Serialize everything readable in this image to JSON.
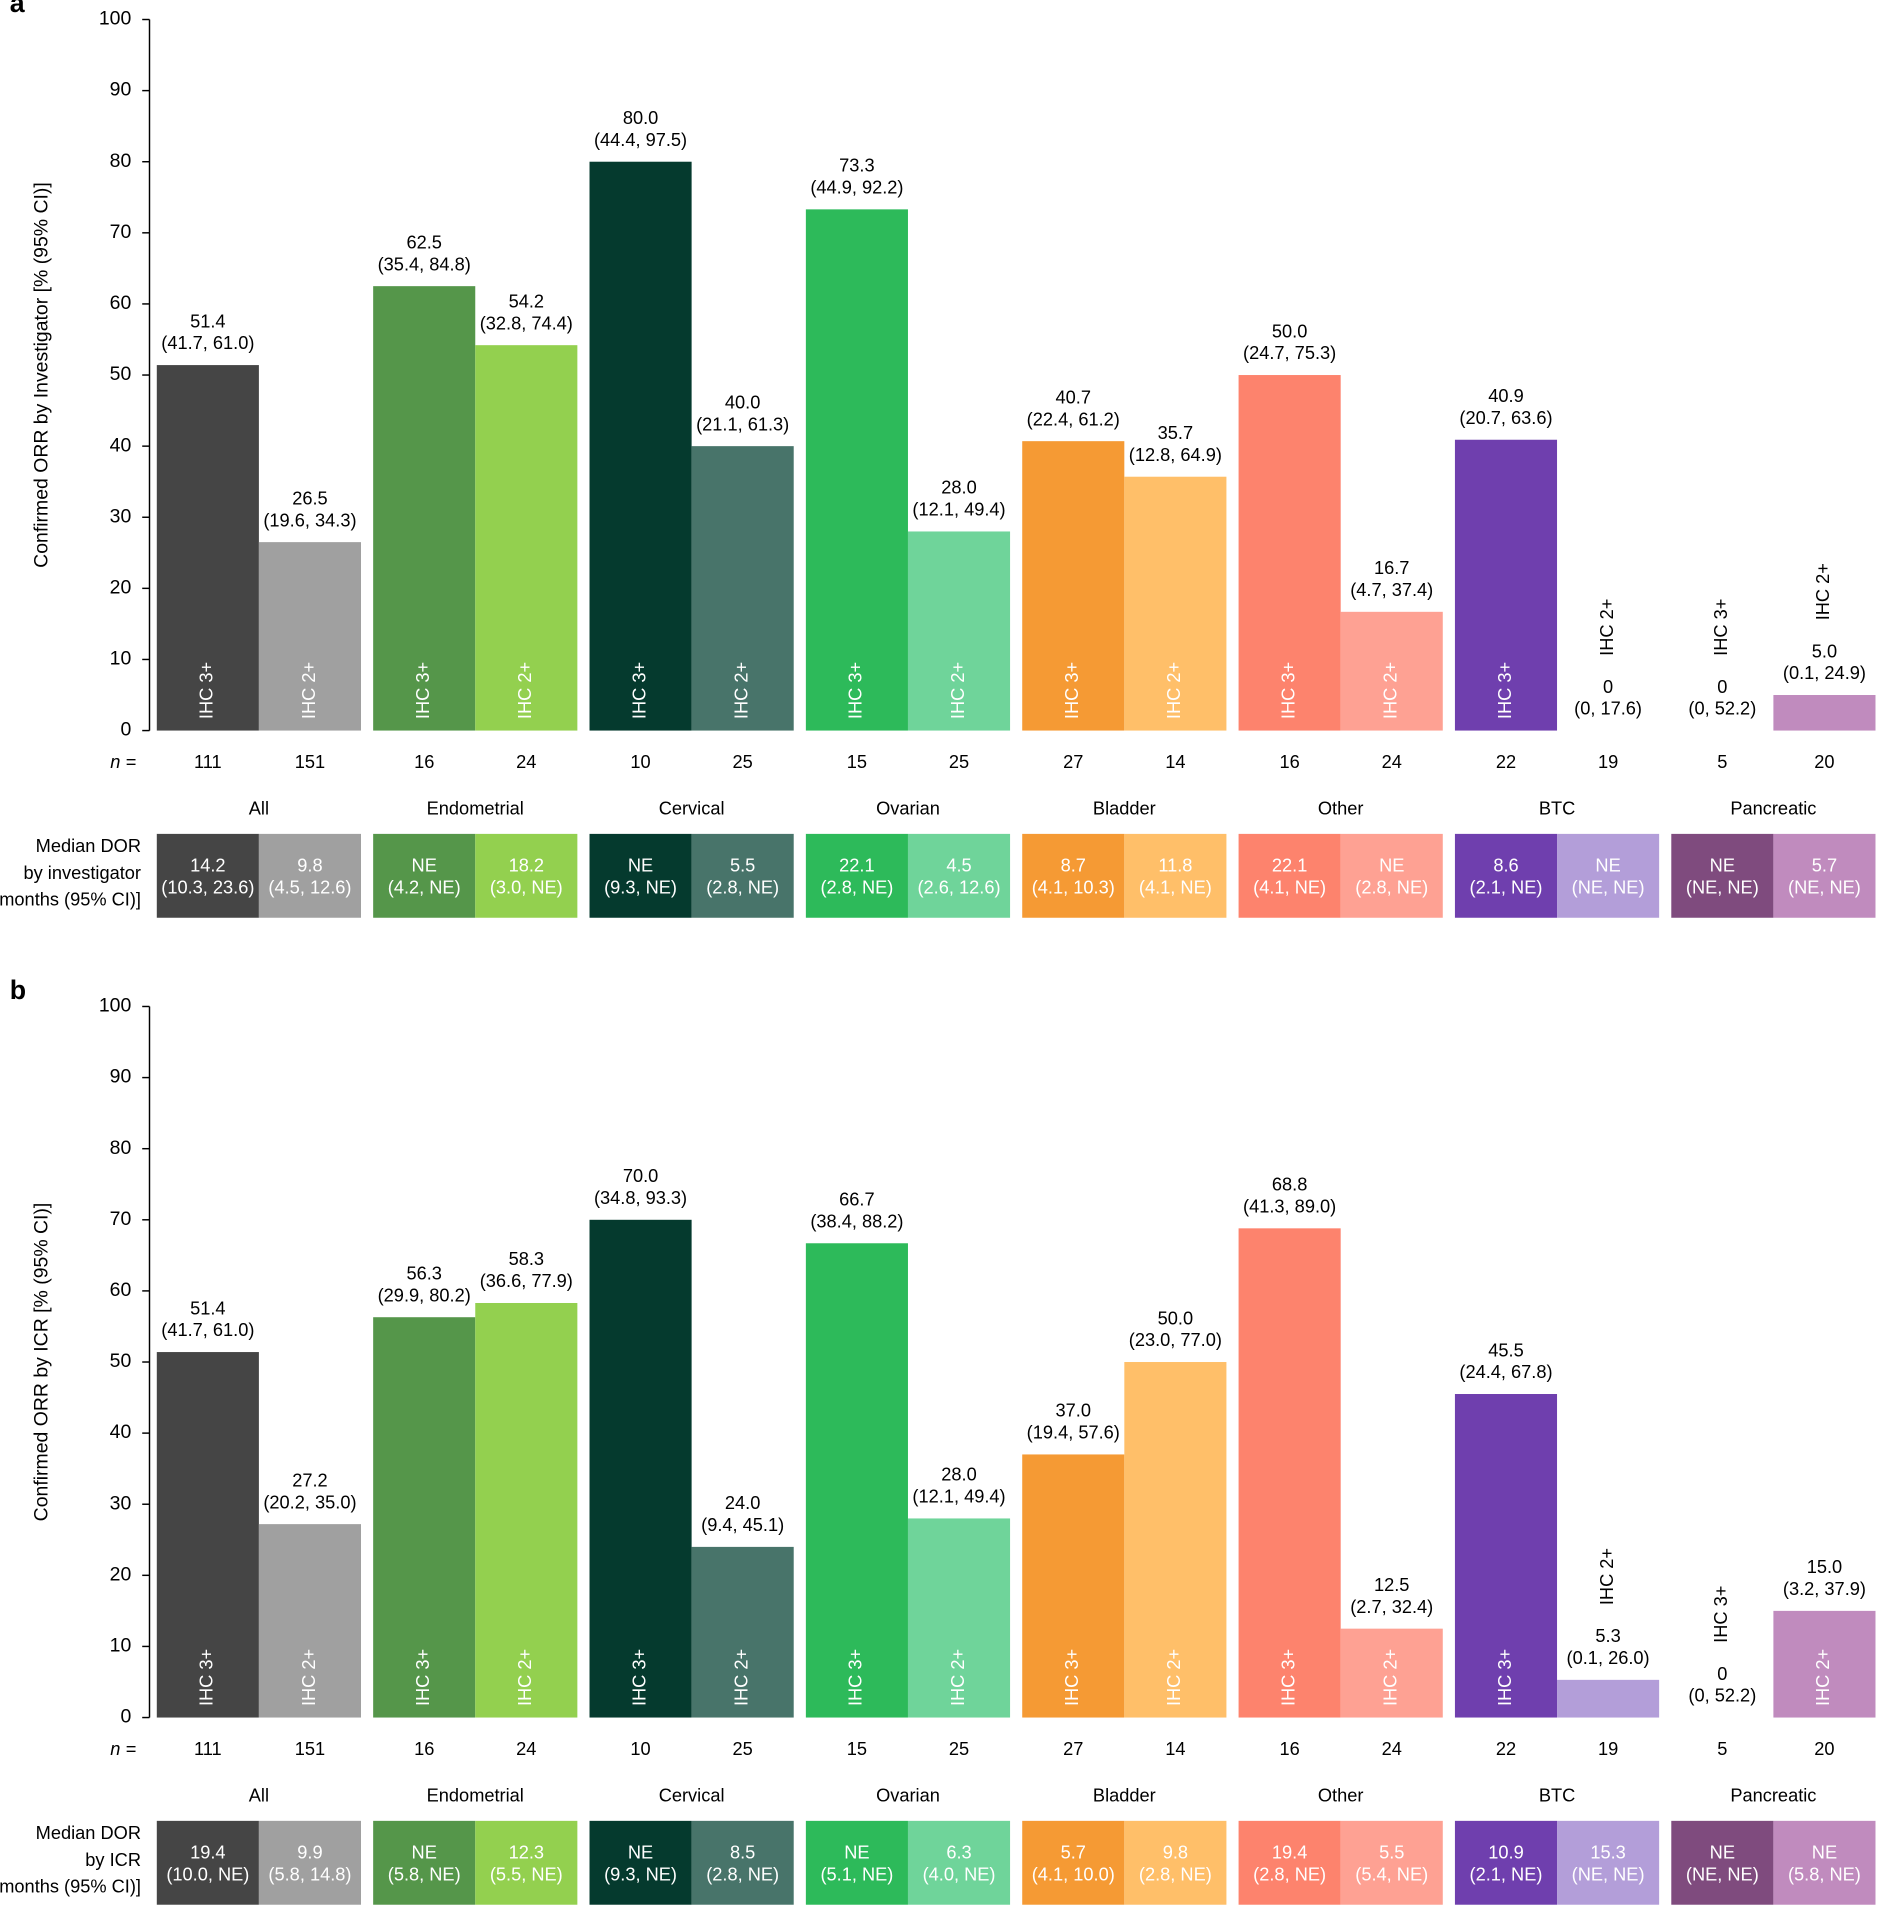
{
  "chart_data": [
    {
      "type": "bar",
      "panel": "a",
      "y_label": "Confirmed ORR by Investigator [% (95% CI)]",
      "ylim": [
        0,
        100
      ],
      "yticks": [
        0,
        10,
        20,
        30,
        40,
        50,
        60,
        70,
        80,
        90,
        100
      ],
      "groups": [
        "All",
        "Endometrial",
        "Cervical",
        "Ovarian",
        "Bladder",
        "Other",
        "BTC",
        "Pancreatic"
      ],
      "categories": [
        "IHC 3+",
        "IHC 2+",
        "IHC 3+",
        "IHC 2+",
        "IHC 3+",
        "IHC 2+",
        "IHC 3+",
        "IHC 2+",
        "IHC 3+",
        "IHC 2+",
        "IHC 3+",
        "IHC 2+",
        "IHC 3+",
        "IHC 2+",
        "IHC 3+",
        "IHC 2+"
      ],
      "values": [
        51.4,
        26.5,
        62.5,
        54.2,
        80.0,
        40.0,
        73.3,
        28.0,
        40.7,
        35.7,
        50.0,
        16.7,
        40.9,
        0,
        0,
        5.0
      ],
      "value_labels": [
        "51.4",
        "26.5",
        "62.5",
        "54.2",
        "80.0",
        "40.0",
        "73.3",
        "28.0",
        "40.7",
        "35.7",
        "50.0",
        "16.7",
        "40.9",
        "0",
        "0",
        "5.0"
      ],
      "ci_labels": [
        "(41.7, 61.0)",
        "(19.6, 34.3)",
        "(35.4, 84.8)",
        "(32.8, 74.4)",
        "(44.4, 97.5)",
        "(21.1, 61.3)",
        "(44.9, 92.2)",
        "(12.1, 49.4)",
        "(22.4, 61.2)",
        "(12.8, 64.9)",
        "(24.7, 75.3)",
        "(4.7, 37.4)",
        "(20.7, 63.6)",
        "(0, 17.6)",
        "(0, 52.2)",
        "(0.1, 24.9)"
      ],
      "n_label": "n =",
      "n": [
        111,
        151,
        16,
        24,
        10,
        25,
        15,
        25,
        27,
        14,
        16,
        24,
        22,
        19,
        5,
        20
      ],
      "dor_label": [
        "Median DOR",
        "by investigator",
        "[months (95% CI)]"
      ],
      "dor": [
        "14.2",
        "9.8",
        "NE",
        "18.2",
        "NE",
        "5.5",
        "22.1",
        "4.5",
        "8.7",
        "11.8",
        "22.1",
        "NE",
        "8.6",
        "NE",
        "NE",
        "5.7"
      ],
      "dor_ci": [
        "(10.3, 23.6)",
        "(4.5, 12.6)",
        "(4.2, NE)",
        "(3.0, NE)",
        "(9.3, NE)",
        "(2.8, NE)",
        "(2.8, NE)",
        "(2.6, 12.6)",
        "(4.1, 10.3)",
        "(4.1, NE)",
        "(4.1, NE)",
        "(2.8, NE)",
        "(2.1, NE)",
        "(NE, NE)",
        "(NE, NE)",
        "(NE, NE)"
      ],
      "colors": [
        "#454545",
        "#a0a0a0",
        "#55964a",
        "#93d04f",
        "#053a2e",
        "#48746a",
        "#2dba5a",
        "#6fd49a",
        "#f59a34",
        "#ffbf69",
        "#fd836d",
        "#fea193",
        "#6f3fae",
        "#b39ed9",
        "#7f4b7e",
        "#c08bbe"
      ]
    },
    {
      "type": "bar",
      "panel": "b",
      "y_label": "Confirmed ORR by ICR [% (95% CI)]",
      "ylim": [
        0,
        100
      ],
      "yticks": [
        0,
        10,
        20,
        30,
        40,
        50,
        60,
        70,
        80,
        90,
        100
      ],
      "groups": [
        "All",
        "Endometrial",
        "Cervical",
        "Ovarian",
        "Bladder",
        "Other",
        "BTC",
        "Pancreatic"
      ],
      "categories": [
        "IHC 3+",
        "IHC 2+",
        "IHC 3+",
        "IHC 2+",
        "IHC 3+",
        "IHC 2+",
        "IHC 3+",
        "IHC 2+",
        "IHC 3+",
        "IHC 2+",
        "IHC 3+",
        "IHC 2+",
        "IHC 3+",
        "IHC 2+",
        "IHC 3+",
        "IHC 2+"
      ],
      "values": [
        51.4,
        27.2,
        56.3,
        58.3,
        70.0,
        24.0,
        66.7,
        28.0,
        37.0,
        50.0,
        68.8,
        12.5,
        45.5,
        5.3,
        0,
        15.0
      ],
      "value_labels": [
        "51.4",
        "27.2",
        "56.3",
        "58.3",
        "70.0",
        "24.0",
        "66.7",
        "28.0",
        "37.0",
        "50.0",
        "68.8",
        "12.5",
        "45.5",
        "5.3",
        "0",
        "15.0"
      ],
      "ci_labels": [
        "(41.7, 61.0)",
        "(20.2, 35.0)",
        "(29.9, 80.2)",
        "(36.6, 77.9)",
        "(34.8, 93.3)",
        "(9.4, 45.1)",
        "(38.4, 88.2)",
        "(12.1, 49.4)",
        "(19.4, 57.6)",
        "(23.0, 77.0)",
        "(41.3, 89.0)",
        "(2.7, 32.4)",
        "(24.4, 67.8)",
        "(0.1, 26.0)",
        "(0, 52.2)",
        "(3.2, 37.9)"
      ],
      "n_label": "n =",
      "n": [
        111,
        151,
        16,
        24,
        10,
        25,
        15,
        25,
        27,
        14,
        16,
        24,
        22,
        19,
        5,
        20
      ],
      "dor_label": [
        "Median DOR",
        "by ICR",
        "[months (95% CI)]"
      ],
      "dor": [
        "19.4",
        "9.9",
        "NE",
        "12.3",
        "NE",
        "8.5",
        "NE",
        "6.3",
        "5.7",
        "9.8",
        "19.4",
        "5.5",
        "10.9",
        "15.3",
        "NE",
        "NE"
      ],
      "dor_ci": [
        "(10.0, NE)",
        "(5.8, 14.8)",
        "(5.8, NE)",
        "(5.5, NE)",
        "(9.3, NE)",
        "(2.8, NE)",
        "(5.1, NE)",
        "(4.0, NE)",
        "(4.1, 10.0)",
        "(2.8, NE)",
        "(2.8, NE)",
        "(5.4, NE)",
        "(2.1, NE)",
        "(NE, NE)",
        "(NE, NE)",
        "(5.8, NE)"
      ],
      "colors": [
        "#454545",
        "#a0a0a0",
        "#55964a",
        "#93d04f",
        "#053a2e",
        "#48746a",
        "#2dba5a",
        "#6fd49a",
        "#f59a34",
        "#ffbf69",
        "#fd836d",
        "#fea193",
        "#6f3fae",
        "#b39ed9",
        "#7f4b7e",
        "#c08bbe"
      ]
    }
  ]
}
